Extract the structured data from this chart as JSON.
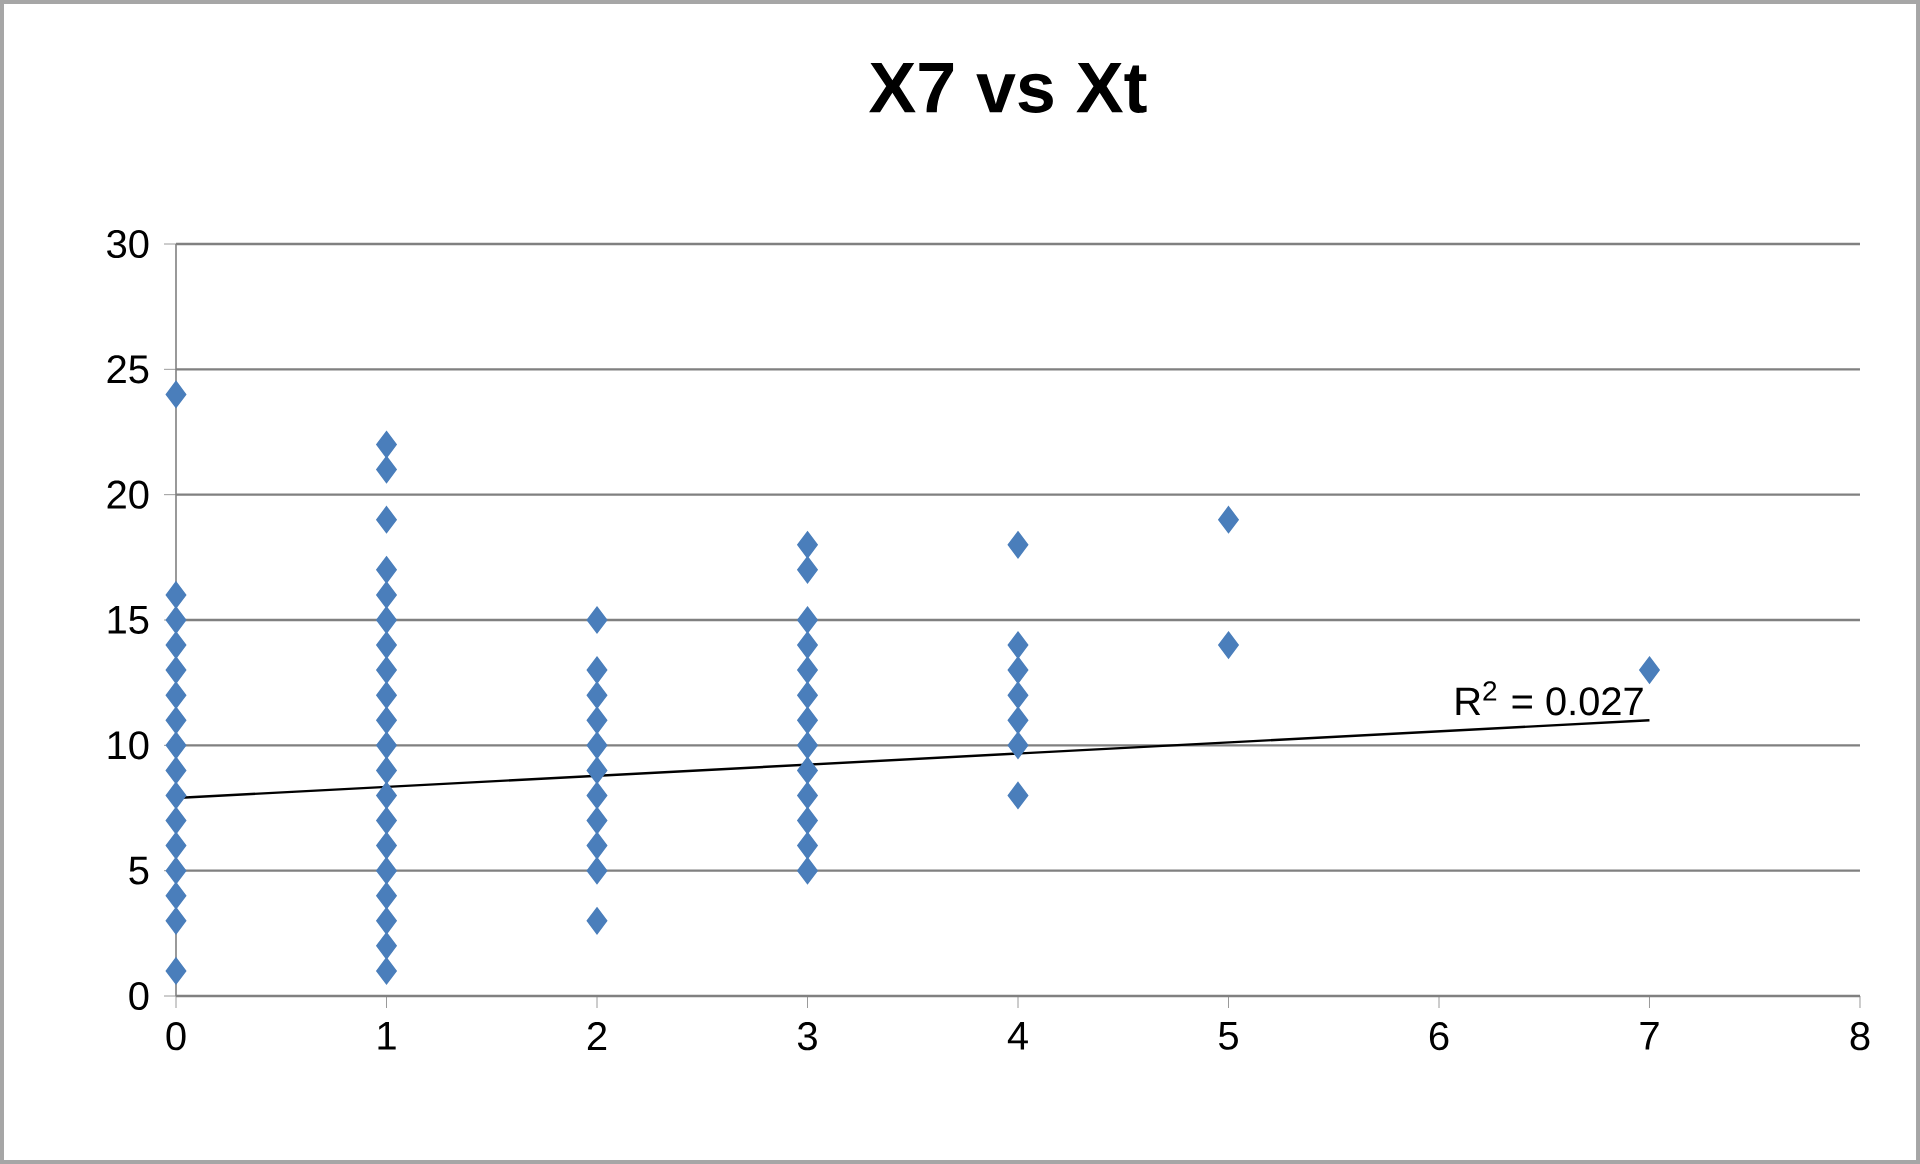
{
  "chart_data": {
    "type": "scatter",
    "title": "X7 vs Xt",
    "xlim": [
      0,
      8
    ],
    "ylim": [
      0,
      30
    ],
    "xticks": [
      0,
      1,
      2,
      3,
      4,
      5,
      6,
      7,
      8
    ],
    "yticks": [
      0,
      5,
      10,
      15,
      20,
      25,
      30
    ],
    "grid": "y",
    "series": [
      {
        "color": "#4a7ebb",
        "marker": "diamond",
        "x": [
          0,
          0,
          0,
          0,
          0,
          0,
          0,
          0,
          0,
          0,
          0,
          0,
          0,
          0,
          0,
          0,
          1,
          1,
          1,
          1,
          1,
          1,
          1,
          1,
          1,
          1,
          1,
          1,
          1,
          1,
          1,
          1,
          1,
          1,
          1,
          1,
          2,
          2,
          2,
          2,
          2,
          2,
          2,
          2,
          2,
          2,
          2,
          3,
          3,
          3,
          3,
          3,
          3,
          3,
          3,
          3,
          3,
          3,
          3,
          3,
          4,
          4,
          4,
          4,
          4,
          4,
          4,
          5,
          5,
          7
        ],
        "values": [
          1,
          3,
          4,
          5,
          6,
          7,
          8,
          9,
          10,
          11,
          12,
          13,
          14,
          15,
          16,
          24,
          1,
          2,
          3,
          4,
          5,
          6,
          7,
          8,
          9,
          10,
          11,
          12,
          13,
          14,
          15,
          16,
          17,
          19,
          21,
          22,
          3,
          5,
          6,
          7,
          8,
          9,
          10,
          11,
          12,
          13,
          15,
          5,
          6,
          7,
          8,
          9,
          10,
          11,
          12,
          13,
          14,
          15,
          17,
          18,
          8,
          10,
          11,
          12,
          13,
          14,
          18,
          14,
          19,
          13
        ]
      },
      {
        "type": "line",
        "color": "#000000",
        "marker": "none",
        "x": [
          0,
          7
        ],
        "values": [
          7.9,
          11.0
        ]
      }
    ],
    "annotations": [
      "R$^{2}$ = 0.027"
    ]
  }
}
